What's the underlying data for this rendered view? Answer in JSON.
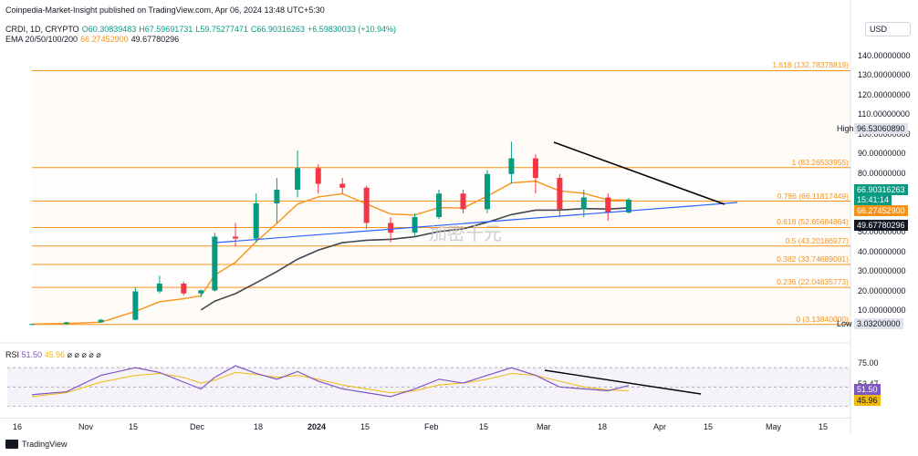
{
  "header": {
    "credit": "Coinpedia-Market-Insight published on TradingView.com, Apr 06, 2024 13:48 UTC+5:30"
  },
  "legend": {
    "symbol": "CRDI, 1D, CRYPTO",
    "open": "O60.30839483",
    "high": "H67.59691731",
    "low": "L59.75277471",
    "close": "C66.90316263",
    "change": "+6.59830033 (+10.94%)",
    "ema_label": "EMA 20/50/100/200",
    "ema_val1": "66.27452900",
    "ema_val2": "49.67780296"
  },
  "currency": "USD",
  "price_axis": {
    "ticks": [
      "140.00000000",
      "130.00000000",
      "120.00000000",
      "110.00000000",
      "100.00000000",
      "90.00000000",
      "80.00000000",
      "70.00000000",
      "50.00000000",
      "40.00000000",
      "30.00000000",
      "20.00000000",
      "10.00000000"
    ],
    "high_label": "High",
    "high_value": "96.53060890",
    "current_price": "66.90316263",
    "countdown": "15:41:14",
    "ema_short": "66.27452900",
    "ema_long": "49.67780296",
    "low_label": "Low",
    "low_value": "3.03200000"
  },
  "fib_levels": [
    {
      "label": "1.618 (132.78378819)",
      "value": 132.78
    },
    {
      "label": "1 (83.26533955)",
      "value": 83.27
    },
    {
      "label": "0.786 (66.11817449)",
      "value": 66.12
    },
    {
      "label": "0.618 (52.65684864)",
      "value": 52.66
    },
    {
      "label": "0.5 (43.20186977)",
      "value": 43.2
    },
    {
      "label": "0.382 (33.74689091)",
      "value": 33.75
    },
    {
      "label": "0.236 (22.04835773)",
      "value": 22.05
    },
    {
      "label": "0 (3.13840000)",
      "value": 3.14
    }
  ],
  "rsi": {
    "label": "RSI",
    "value1": "51.50",
    "value2": "45.96",
    "flags": "⌀ ⌀ ⌀ ⌀ ⌀",
    "ticks": [
      "75.00",
      "53.47",
      "35.30"
    ],
    "tag1": "51.50",
    "tag2": "45.96"
  },
  "time_axis": [
    "16",
    "Nov",
    "15",
    "Dec",
    "18",
    "2024",
    "15",
    "Feb",
    "15",
    "Mar",
    "18",
    "Apr",
    "15",
    "May",
    "15"
  ],
  "footer": "TradingView",
  "watermark": "加密十元",
  "colors": {
    "up": "#089981",
    "down": "#f23645",
    "fib": "#f7931a",
    "ema_short": "#f7931a",
    "ema_long": "#434651",
    "trend_blue": "#2962ff",
    "rsi_line": "#7e57c2",
    "rsi_ma": "#f0b90b"
  },
  "chart_data": {
    "type": "candlestick",
    "title": "",
    "ylim": [
      0,
      145
    ],
    "x_start": "2023-10-16",
    "x_end": "2024-04-06",
    "candles": [
      {
        "date": "2023-10-16",
        "o": 3.1,
        "h": 3.5,
        "l": 3.0,
        "c": 3.3
      },
      {
        "date": "2023-10-26",
        "o": 3.3,
        "h": 4.5,
        "l": 3.2,
        "c": 4.2
      },
      {
        "date": "2023-11-05",
        "o": 4.2,
        "h": 6.0,
        "l": 4.0,
        "c": 5.5
      },
      {
        "date": "2023-11-15",
        "o": 5.5,
        "h": 22.0,
        "l": 5.3,
        "c": 20.0
      },
      {
        "date": "2023-11-22",
        "o": 20.0,
        "h": 28.0,
        "l": 19.0,
        "c": 24.0
      },
      {
        "date": "2023-11-29",
        "o": 24.0,
        "h": 25.0,
        "l": 18.0,
        "c": 19.0
      },
      {
        "date": "2023-12-04",
        "o": 19.0,
        "h": 21.0,
        "l": 17.0,
        "c": 20.5
      },
      {
        "date": "2023-12-08",
        "o": 20.5,
        "h": 50.0,
        "l": 20.0,
        "c": 48.0
      },
      {
        "date": "2023-12-14",
        "o": 48.0,
        "h": 55.0,
        "l": 43.0,
        "c": 47.0
      },
      {
        "date": "2023-12-20",
        "o": 47.0,
        "h": 70.0,
        "l": 45.0,
        "c": 65.0
      },
      {
        "date": "2023-12-26",
        "o": 65.0,
        "h": 78.0,
        "l": 55.0,
        "c": 72.0
      },
      {
        "date": "2024-01-01",
        "o": 72.0,
        "h": 92.0,
        "l": 68.0,
        "c": 83.0
      },
      {
        "date": "2024-01-07",
        "o": 83.0,
        "h": 85.0,
        "l": 70.0,
        "c": 75.0
      },
      {
        "date": "2024-01-14",
        "o": 75.0,
        "h": 78.0,
        "l": 70.0,
        "c": 73.0
      },
      {
        "date": "2024-01-21",
        "o": 73.0,
        "h": 74.0,
        "l": 52.0,
        "c": 55.0
      },
      {
        "date": "2024-01-28",
        "o": 55.0,
        "h": 58.0,
        "l": 45.0,
        "c": 50.0
      },
      {
        "date": "2024-02-04",
        "o": 50.0,
        "h": 60.0,
        "l": 48.0,
        "c": 58.0
      },
      {
        "date": "2024-02-11",
        "o": 58.0,
        "h": 72.0,
        "l": 57.0,
        "c": 70.0
      },
      {
        "date": "2024-02-18",
        "o": 70.0,
        "h": 72.0,
        "l": 60.0,
        "c": 62.0
      },
      {
        "date": "2024-02-25",
        "o": 62.0,
        "h": 82.0,
        "l": 60.0,
        "c": 80.0
      },
      {
        "date": "2024-03-03",
        "o": 80.0,
        "h": 96.5,
        "l": 75.0,
        "c": 88.0
      },
      {
        "date": "2024-03-10",
        "o": 88.0,
        "h": 90.0,
        "l": 70.0,
        "c": 78.0
      },
      {
        "date": "2024-03-17",
        "o": 78.0,
        "h": 80.0,
        "l": 58.0,
        "c": 62.0
      },
      {
        "date": "2024-03-24",
        "o": 62.0,
        "h": 72.0,
        "l": 58.0,
        "c": 68.0
      },
      {
        "date": "2024-03-31",
        "o": 68.0,
        "h": 70.0,
        "l": 56.0,
        "c": 60.3
      },
      {
        "date": "2024-04-06",
        "o": 60.31,
        "h": 67.6,
        "l": 59.75,
        "c": 66.9
      }
    ],
    "rsi_ylim": [
      20,
      90
    ],
    "rsi_levels": [
      70,
      50,
      30
    ]
  }
}
